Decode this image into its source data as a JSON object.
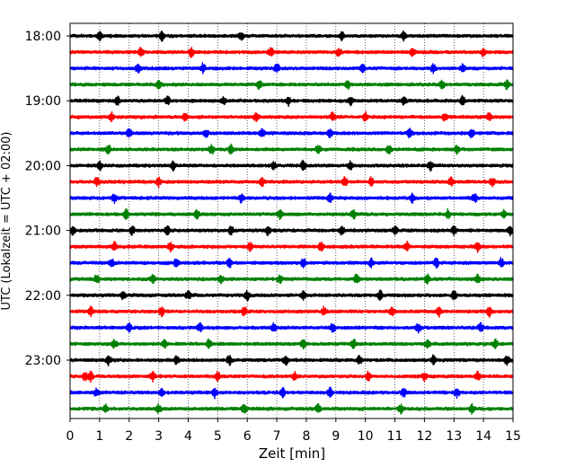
{
  "chart_data": {
    "type": "line",
    "title": "",
    "xlabel": "Zeit  [min]",
    "ylabel": "UTC (Lokalzeit = UTC + 02:00)",
    "xlim": [
      0,
      15
    ],
    "x_ticks": [
      0,
      1,
      2,
      3,
      4,
      5,
      6,
      7,
      8,
      9,
      10,
      11,
      12,
      13,
      14,
      15
    ],
    "x_tick_labels": [
      "0",
      "1",
      "2",
      "3",
      "4",
      "5",
      "6",
      "7",
      "8",
      "9",
      "10",
      "11",
      "12",
      "13",
      "14",
      "15"
    ],
    "y_tick_labels": [
      "18:00",
      "19:00",
      "20:00",
      "21:00",
      "22:00",
      "23:00"
    ],
    "grid": "vertical-dotted",
    "trace_minutes": 15,
    "trace_colors_cycle": [
      "#000000",
      "#ff0000",
      "#0000ff",
      "#008000"
    ],
    "traces": [
      {
        "start": "18:00",
        "color": "#000000",
        "events_min": [
          1.0,
          3.1,
          5.8,
          9.2,
          11.3
        ]
      },
      {
        "start": "18:15",
        "color": "#ff0000",
        "events_min": [
          2.4,
          4.1,
          6.8,
          9.1,
          11.6,
          14.0
        ]
      },
      {
        "start": "18:30",
        "color": "#0000ff",
        "events_min": [
          2.3,
          4.5,
          7.0,
          9.9,
          12.3,
          13.3
        ]
      },
      {
        "start": "18:45",
        "color": "#008000",
        "events_min": [
          3.0,
          6.4,
          9.4,
          12.6,
          14.8
        ]
      },
      {
        "start": "19:00",
        "color": "#000000",
        "events_min": [
          1.6,
          3.3,
          5.2,
          7.4,
          9.5,
          11.3,
          13.3
        ]
      },
      {
        "start": "19:15",
        "color": "#ff0000",
        "events_min": [
          1.4,
          3.9,
          6.3,
          8.9,
          10.0,
          12.7,
          14.2
        ]
      },
      {
        "start": "19:30",
        "color": "#0000ff",
        "events_min": [
          2.0,
          4.6,
          6.5,
          8.8,
          11.5,
          13.6
        ]
      },
      {
        "start": "19:45",
        "color": "#008000",
        "events_min": [
          1.3,
          4.8,
          5.45,
          8.4,
          10.8,
          13.1
        ]
      },
      {
        "start": "20:00",
        "color": "#000000",
        "events_min": [
          1.0,
          3.5,
          6.9,
          7.9,
          9.5,
          12.2
        ]
      },
      {
        "start": "20:15",
        "color": "#ff0000",
        "events_min": [
          0.9,
          3.0,
          6.5,
          9.3,
          10.2,
          12.9,
          14.3
        ]
      },
      {
        "start": "20:30",
        "color": "#0000ff",
        "events_min": [
          1.5,
          5.8,
          8.8,
          11.6,
          13.7
        ]
      },
      {
        "start": "20:45",
        "color": "#008000",
        "events_min": [
          1.9,
          4.3,
          7.1,
          9.6,
          12.8,
          14.7
        ]
      },
      {
        "start": "21:00",
        "color": "#000000",
        "events_min": [
          0.1,
          2.1,
          3.3,
          5.45,
          6.7,
          9.2,
          11.0,
          13.0,
          14.9
        ]
      },
      {
        "start": "21:15",
        "color": "#ff0000",
        "events_min": [
          1.5,
          3.4,
          6.1,
          8.5,
          11.4,
          13.8
        ]
      },
      {
        "start": "21:30",
        "color": "#0000ff",
        "events_min": [
          1.4,
          3.6,
          5.4,
          7.9,
          10.2,
          12.4,
          14.6
        ]
      },
      {
        "start": "21:45",
        "color": "#008000",
        "events_min": [
          0.9,
          2.8,
          5.1,
          7.1,
          9.7,
          12.1,
          13.8
        ]
      },
      {
        "start": "22:00",
        "color": "#000000",
        "events_min": [
          1.8,
          4.0,
          6.0,
          7.9,
          10.5,
          13.0
        ]
      },
      {
        "start": "22:15",
        "color": "#ff0000",
        "events_min": [
          0.7,
          3.1,
          5.9,
          8.6,
          10.9,
          12.5,
          14.2
        ]
      },
      {
        "start": "22:30",
        "color": "#0000ff",
        "events_min": [
          2.0,
          4.4,
          6.9,
          8.9,
          11.8,
          13.9
        ]
      },
      {
        "start": "22:45",
        "color": "#008000",
        "events_min": [
          1.5,
          3.2,
          4.7,
          7.9,
          9.6,
          12.1,
          14.4
        ]
      },
      {
        "start": "23:00",
        "color": "#000000",
        "events_min": [
          1.3,
          3.6,
          5.4,
          7.3,
          9.8,
          12.3,
          14.8
        ]
      },
      {
        "start": "23:15",
        "color": "#ff0000",
        "events_min": [
          0.5,
          0.7,
          2.8,
          5.0,
          7.6,
          10.1,
          12.0,
          13.8
        ]
      },
      {
        "start": "23:30",
        "color": "#0000ff",
        "events_min": [
          0.9,
          3.1,
          4.9,
          7.2,
          8.8,
          11.3,
          13.1
        ]
      },
      {
        "start": "23:45",
        "color": "#008000",
        "events_min": [
          1.2,
          3.0,
          5.9,
          8.4,
          11.2,
          13.6
        ]
      }
    ]
  }
}
